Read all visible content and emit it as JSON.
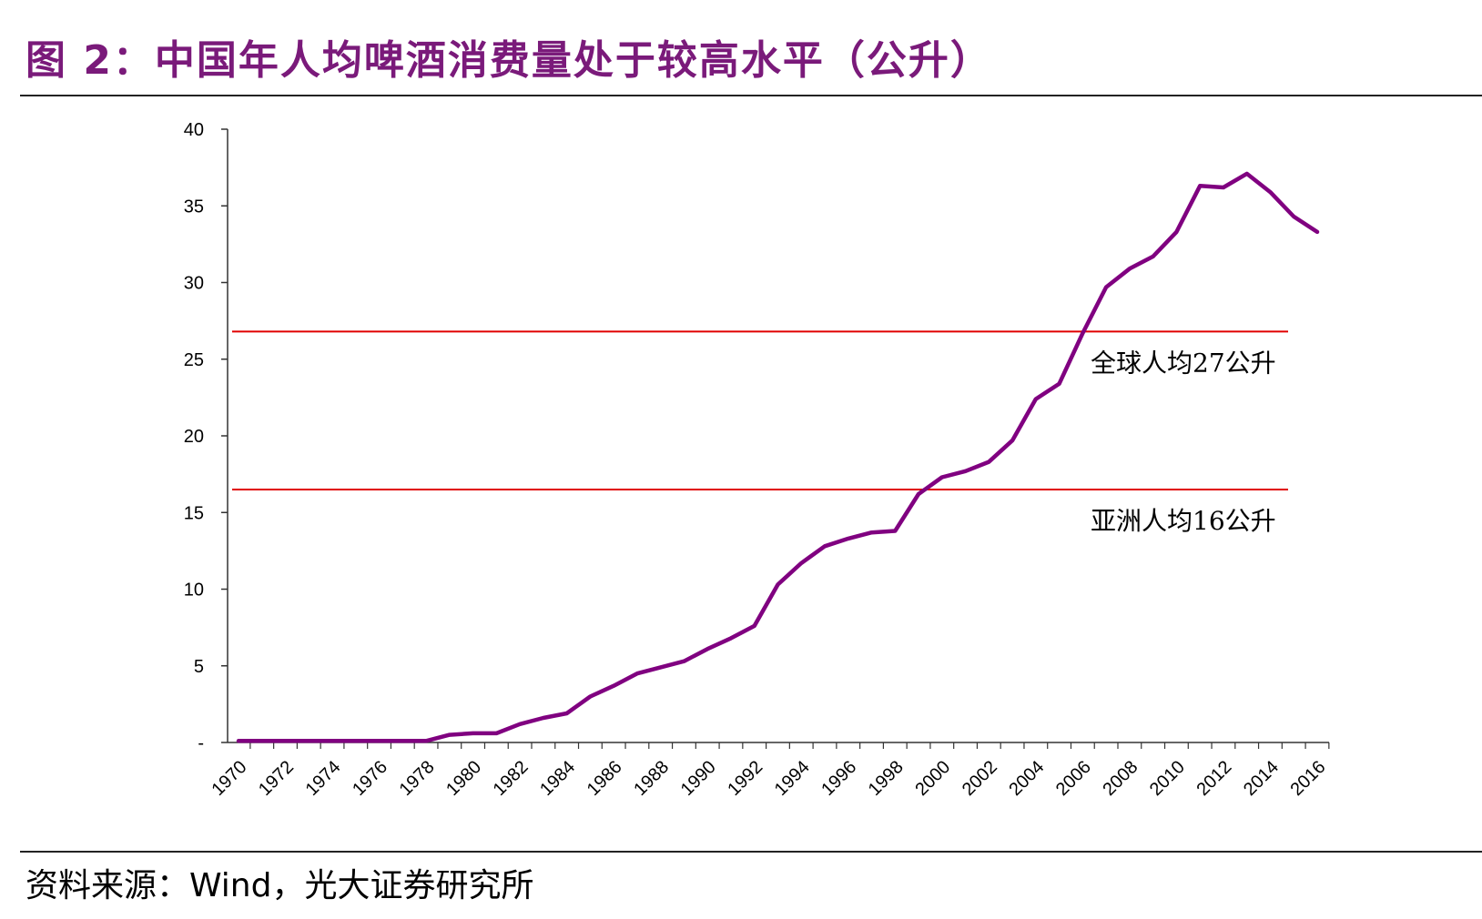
{
  "title": "图 2：中国年人均啤酒消费量处于较高水平（公升）",
  "source": "资料来源：Wind，光大证券研究所",
  "colors": {
    "title": "#7a1a7a",
    "line": "#800080",
    "reference": "#e00000",
    "axis": "#333333"
  },
  "chart_data": {
    "type": "line",
    "title": "中国年人均啤酒消费量处于较高水平（公升）",
    "xlabel": "",
    "ylabel": "",
    "ylim": [
      0,
      40
    ],
    "y_ticks": [
      "-",
      "5",
      "10",
      "15",
      "20",
      "25",
      "30",
      "35",
      "40"
    ],
    "x_tick_labels": [
      "1970",
      "1972",
      "1974",
      "1976",
      "1978",
      "1980",
      "1982",
      "1984",
      "1986",
      "1988",
      "1990",
      "1992",
      "1994",
      "1996",
      "1998",
      "2000",
      "2002",
      "2004",
      "2006",
      "2008",
      "2010",
      "2012",
      "2014",
      "2016"
    ],
    "grid": false,
    "series": [
      {
        "x": [
          1970,
          1971,
          1972,
          1973,
          1974,
          1975,
          1976,
          1977,
          1978,
          1979,
          1980,
          1981,
          1982,
          1983,
          1984,
          1985,
          1986,
          1987,
          1988,
          1989,
          1990,
          1991,
          1992,
          1993,
          1994,
          1995,
          1996,
          1997,
          1998,
          1999,
          2000,
          2001,
          2002,
          2003,
          2004,
          2005,
          2006,
          2007,
          2008,
          2009,
          2010,
          2011,
          2012,
          2013,
          2014,
          2015,
          2016
        ],
        "values": [
          0.1,
          0.1,
          0.1,
          0.1,
          0.1,
          0.1,
          0.1,
          0.1,
          0.1,
          0.5,
          0.6,
          0.6,
          1.2,
          1.6,
          1.9,
          3.0,
          3.7,
          4.5,
          4.9,
          5.3,
          6.1,
          6.8,
          7.6,
          10.3,
          11.7,
          12.8,
          13.3,
          13.7,
          13.8,
          16.2,
          17.3,
          17.7,
          18.3,
          19.7,
          22.4,
          23.4,
          26.7,
          29.7,
          30.9,
          31.7,
          33.3,
          36.3,
          36.2,
          37.1,
          35.9,
          34.3,
          33.3
        ]
      }
    ],
    "reference_lines": [
      {
        "label": "全球人均27公升",
        "value": 26.8
      },
      {
        "label": "亚洲人均16公升",
        "value": 16.5
      }
    ]
  }
}
